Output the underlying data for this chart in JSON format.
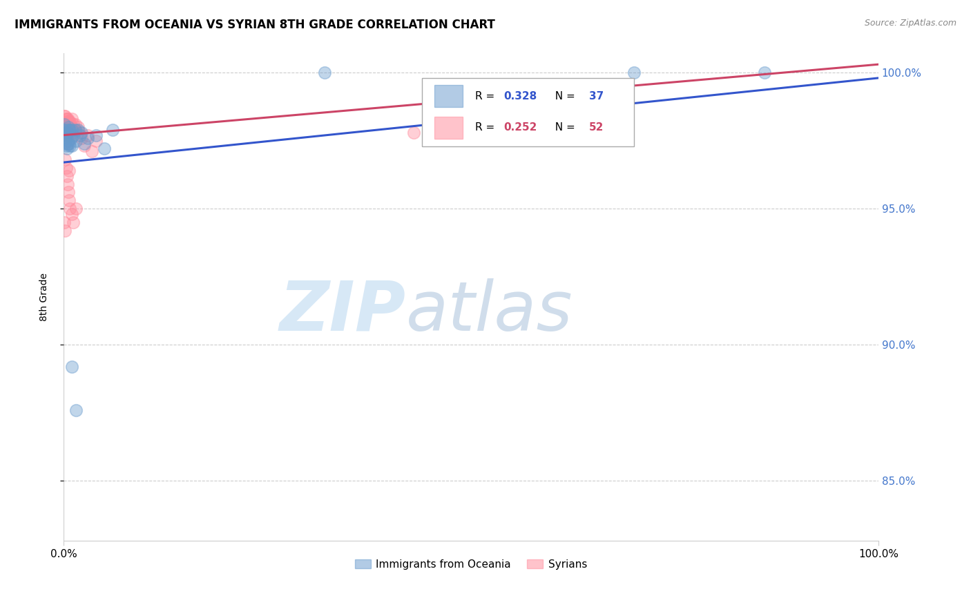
{
  "title": "IMMIGRANTS FROM OCEANIA VS SYRIAN 8TH GRADE CORRELATION CHART",
  "source": "Source: ZipAtlas.com",
  "ylabel": "8th Grade",
  "ytick_labels": [
    "85.0%",
    "90.0%",
    "95.0%",
    "100.0%"
  ],
  "ytick_values": [
    0.85,
    0.9,
    0.95,
    1.0
  ],
  "legend_blue_label": "Immigrants from Oceania",
  "legend_pink_label": "Syrians",
  "blue_color": "#6699CC",
  "pink_color": "#FF8899",
  "trendline_blue": "#3355CC",
  "trendline_pink": "#CC4466",
  "watermark_zip": "ZIP",
  "watermark_atlas": "atlas",
  "blue_x": [
    0.0,
    0.001,
    0.001,
    0.002,
    0.002,
    0.003,
    0.003,
    0.003,
    0.004,
    0.004,
    0.005,
    0.005,
    0.006,
    0.006,
    0.007,
    0.007,
    0.008,
    0.008,
    0.009,
    0.01,
    0.01,
    0.012,
    0.014,
    0.015,
    0.018,
    0.02,
    0.022,
    0.025,
    0.03,
    0.04,
    0.05,
    0.06,
    0.32,
    0.7,
    0.86,
    0.01,
    0.015
  ],
  "blue_y": [
    0.979,
    0.981,
    0.978,
    0.977,
    0.974,
    0.979,
    0.976,
    0.973,
    0.978,
    0.972,
    0.978,
    0.974,
    0.98,
    0.975,
    0.979,
    0.974,
    0.979,
    0.973,
    0.976,
    0.979,
    0.973,
    0.977,
    0.979,
    0.975,
    0.979,
    0.977,
    0.978,
    0.974,
    0.976,
    0.977,
    0.972,
    0.979,
    1.0,
    1.0,
    1.0,
    0.892,
    0.876
  ],
  "pink_x": [
    0.0,
    0.001,
    0.001,
    0.001,
    0.002,
    0.002,
    0.002,
    0.003,
    0.003,
    0.003,
    0.004,
    0.004,
    0.004,
    0.005,
    0.005,
    0.005,
    0.006,
    0.006,
    0.007,
    0.007,
    0.008,
    0.008,
    0.009,
    0.01,
    0.01,
    0.011,
    0.012,
    0.013,
    0.014,
    0.015,
    0.016,
    0.018,
    0.02,
    0.022,
    0.025,
    0.03,
    0.035,
    0.04,
    0.007,
    0.002,
    0.003,
    0.004,
    0.005,
    0.006,
    0.007,
    0.008,
    0.01,
    0.012,
    0.015,
    0.001,
    0.002,
    0.43
  ],
  "pink_y": [
    0.982,
    0.984,
    0.981,
    0.979,
    0.984,
    0.981,
    0.978,
    0.983,
    0.981,
    0.978,
    0.983,
    0.98,
    0.977,
    0.983,
    0.98,
    0.977,
    0.982,
    0.979,
    0.982,
    0.979,
    0.982,
    0.979,
    0.98,
    0.983,
    0.98,
    0.978,
    0.981,
    0.979,
    0.981,
    0.979,
    0.977,
    0.98,
    0.978,
    0.976,
    0.973,
    0.977,
    0.971,
    0.975,
    0.964,
    0.968,
    0.965,
    0.962,
    0.959,
    0.956,
    0.953,
    0.95,
    0.948,
    0.945,
    0.95,
    0.945,
    0.942,
    0.978
  ],
  "xlim": [
    0.0,
    1.0
  ],
  "ylim": [
    0.828,
    1.007
  ],
  "blue_trendline_x": [
    0.0,
    1.0
  ],
  "blue_trendline_y": [
    0.967,
    0.998
  ],
  "pink_trendline_x": [
    0.0,
    1.0
  ],
  "pink_trendline_y": [
    0.977,
    1.003
  ]
}
